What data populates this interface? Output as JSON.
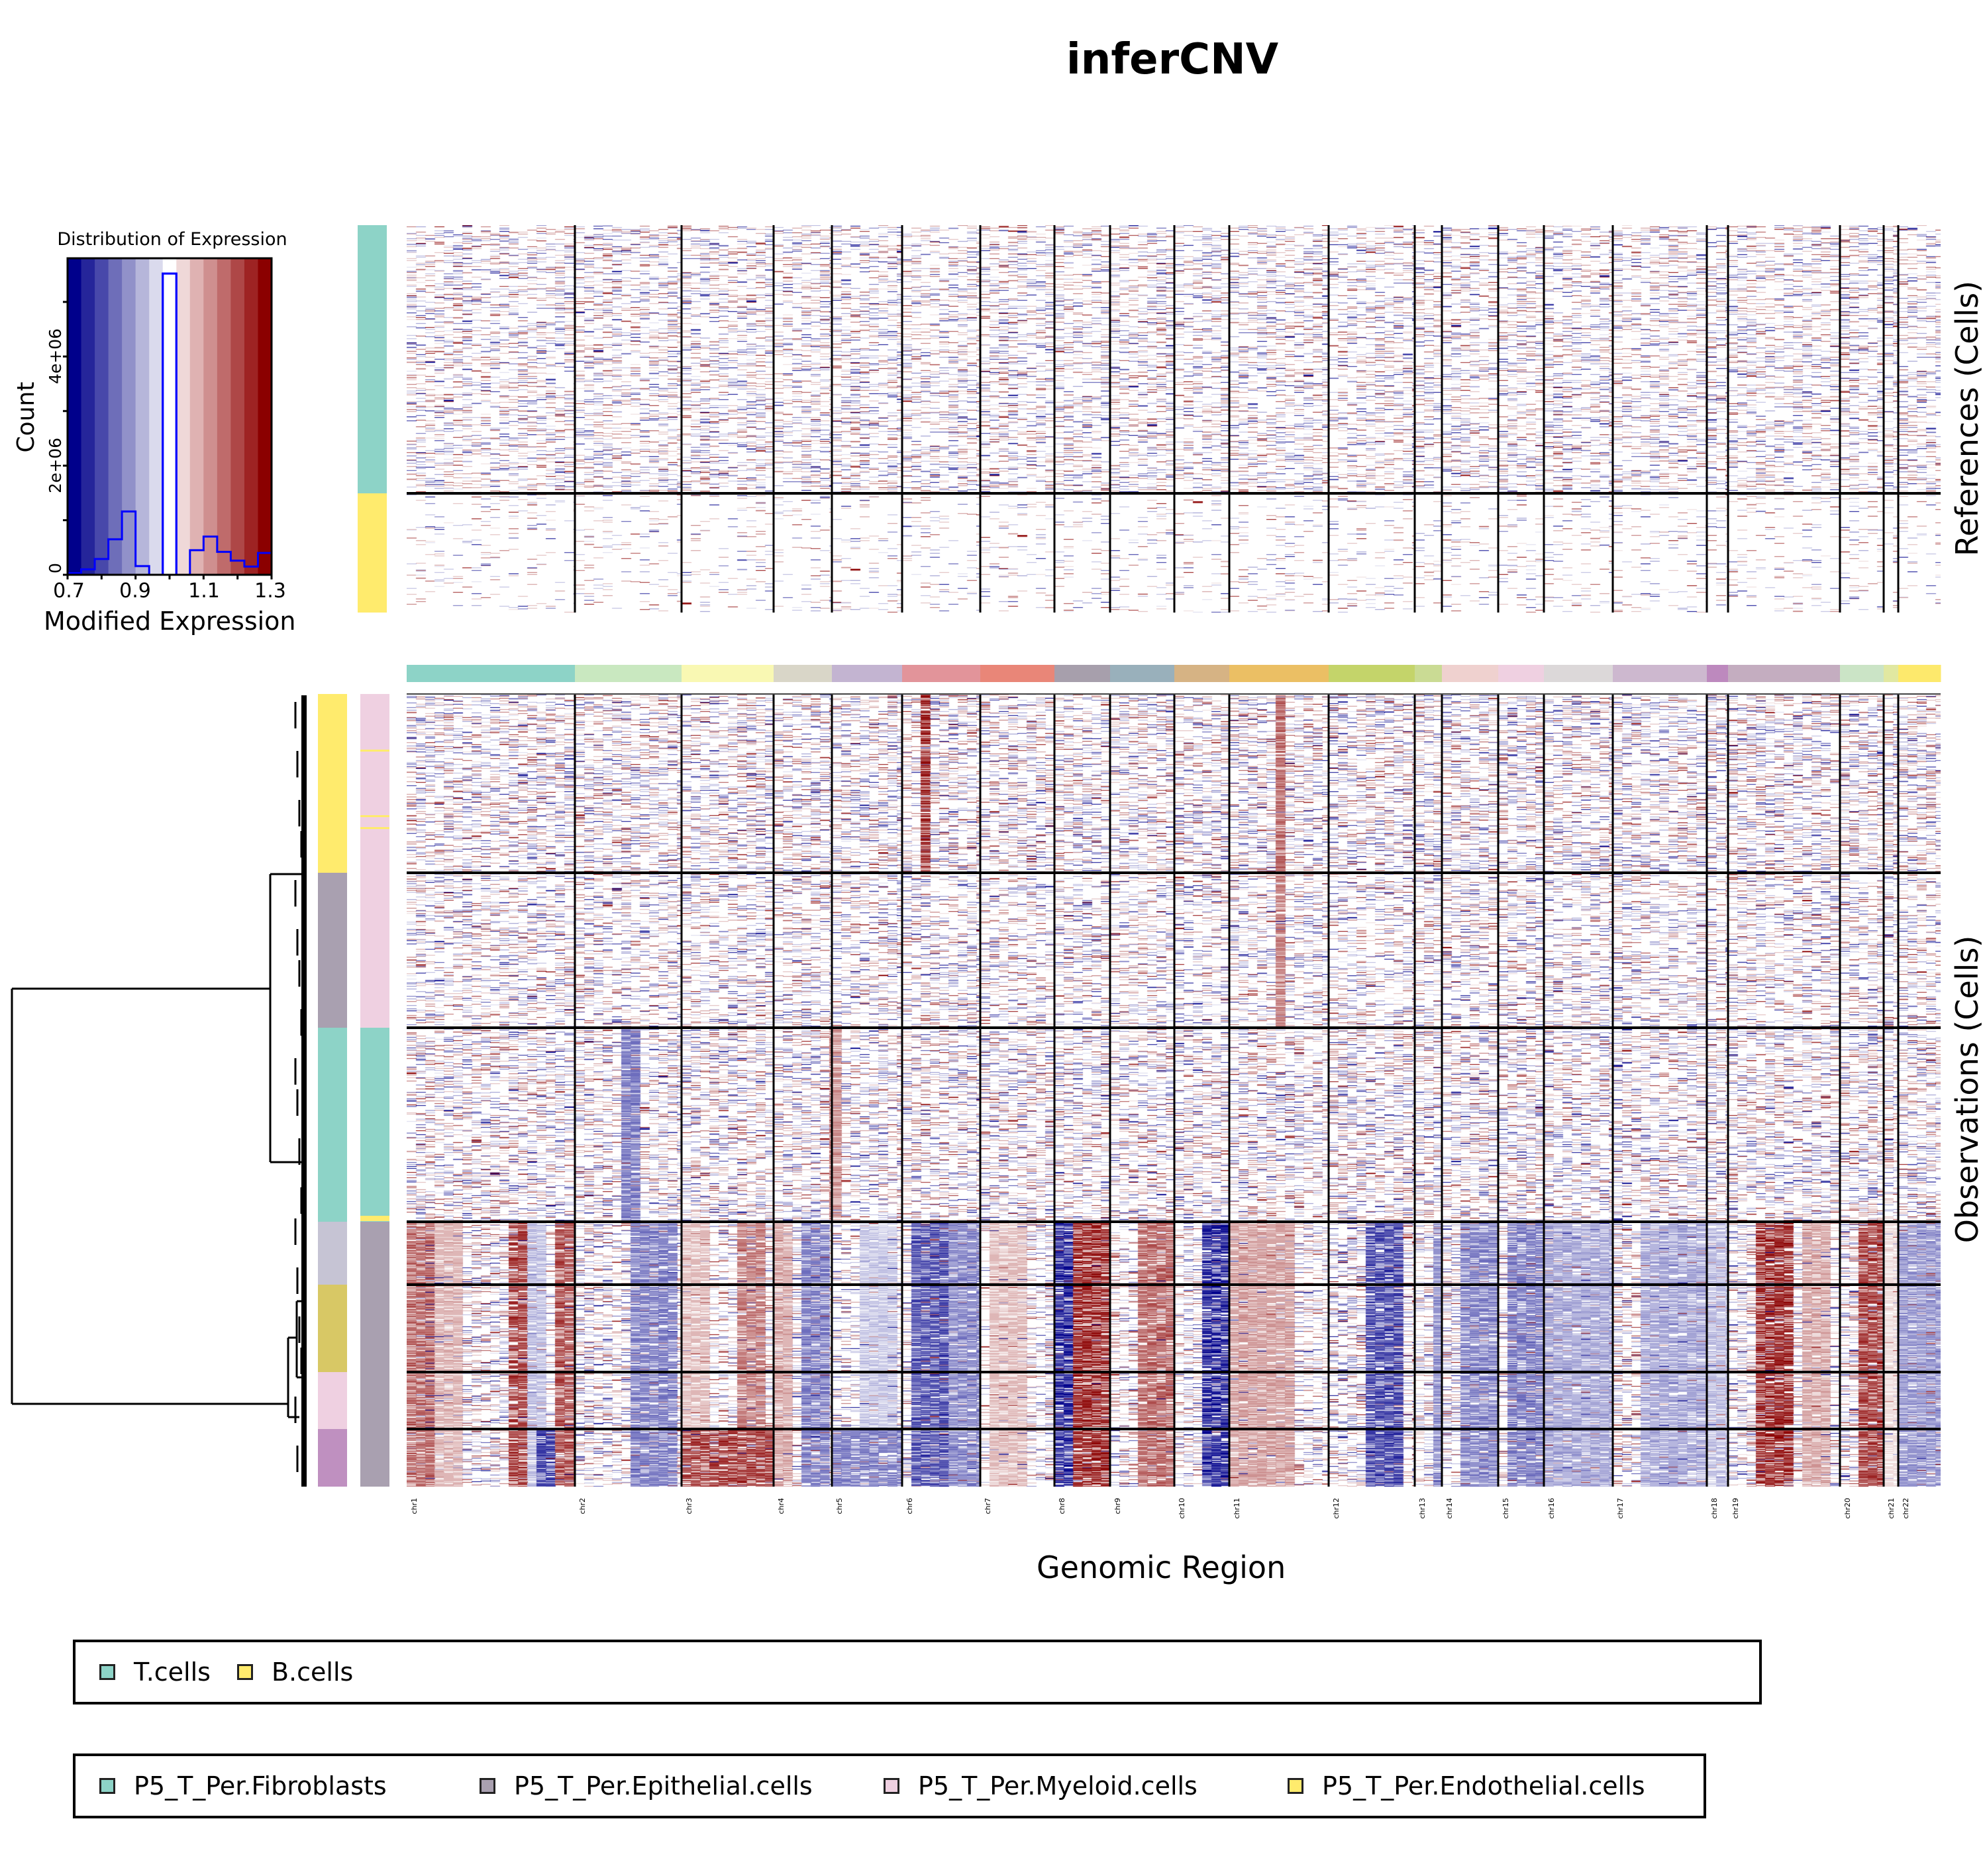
{
  "title": "inferCNV",
  "histogram": {
    "title": "Distribution of Expression",
    "xlabel": "Modified Expression",
    "ylabel": "Count",
    "xticks": [
      "0.7",
      "0.9",
      "1.1",
      "1.3"
    ],
    "yticks": [
      "0",
      "2e+06",
      "4e+06"
    ],
    "line_color": "#0000ff"
  },
  "chart_data": [
    {
      "type": "bar",
      "title": "Distribution of Expression",
      "xlabel": "Modified Expression",
      "ylabel": "Count",
      "xlim": [
        0.7,
        1.3
      ],
      "ylim": [
        0,
        5800000
      ],
      "bin_edges": [
        0.7,
        0.74,
        0.78,
        0.82,
        0.86,
        0.9,
        0.94,
        0.98,
        1.02,
        1.06,
        1.1,
        1.14,
        1.18,
        1.22,
        1.26,
        1.3
      ],
      "values": [
        30000,
        100000,
        290000,
        650000,
        1160000,
        160000,
        0,
        5520000,
        0,
        450000,
        700000,
        420000,
        260000,
        150000,
        400000
      ],
      "band_colors": [
        "#00008b",
        "#25259a",
        "#4848aa",
        "#6e6eb9",
        "#9191c9",
        "#b6b6da",
        "#dadaed",
        "#ffffff",
        "#efd8d8",
        "#dfb2b2",
        "#cf8f8f",
        "#bf6b6b",
        "#ae4747",
        "#9e2323",
        "#8b0000"
      ]
    },
    {
      "type": "heatmap",
      "title": "inferCNV",
      "xlabel": "Genomic Region",
      "colormap": {
        "low": "#00008b",
        "mid": "#ffffff",
        "high": "#8b0000",
        "range": [
          0.7,
          1.3
        ]
      },
      "chromosomes": [
        {
          "name": "chr1",
          "weight": 254,
          "color": "#8dd3c7"
        },
        {
          "name": "chr2",
          "weight": 161,
          "color": "#c9e8c0"
        },
        {
          "name": "chr3",
          "weight": 139,
          "color": "#f9f8b3"
        },
        {
          "name": "chr4",
          "weight": 88,
          "color": "#d9d6c8"
        },
        {
          "name": "chr5",
          "weight": 106,
          "color": "#c3b4d1"
        },
        {
          "name": "chr6",
          "weight": 118,
          "color": "#e2949a"
        },
        {
          "name": "chr7",
          "weight": 112,
          "color": "#e98678"
        },
        {
          "name": "chr8",
          "weight": 84,
          "color": "#a79fac"
        },
        {
          "name": "chr9",
          "weight": 97,
          "color": "#99b0bb"
        },
        {
          "name": "chr10",
          "weight": 83,
          "color": "#d6b384"
        },
        {
          "name": "chr11",
          "weight": 150,
          "color": "#ebbf64"
        },
        {
          "name": "chr12",
          "weight": 130,
          "color": "#c4d46a"
        },
        {
          "name": "chr13",
          "weight": 41,
          "color": "#cadb94"
        },
        {
          "name": "chr14",
          "weight": 85,
          "color": "#efd1cf"
        },
        {
          "name": "chr15",
          "weight": 69,
          "color": "#efd0e1"
        },
        {
          "name": "chr16",
          "weight": 104,
          "color": "#dcd8d9"
        },
        {
          "name": "chr17",
          "weight": 142,
          "color": "#cdb8cf"
        },
        {
          "name": "chr18",
          "weight": 32,
          "color": "#bd89be"
        },
        {
          "name": "chr19",
          "weight": 169,
          "color": "#c4adc0"
        },
        {
          "name": "chr20",
          "weight": 66,
          "color": "#cbe4c6"
        },
        {
          "name": "chr21",
          "weight": 22,
          "color": "#e1e8a1"
        },
        {
          "name": "chr22",
          "weight": 64,
          "color": "#fde96c"
        }
      ],
      "references": {
        "label": "References (Cells)",
        "groups": [
          {
            "name": "T.cells",
            "color": "#8dd3c7",
            "rows": 405,
            "noise": 0.55
          },
          {
            "name": "B.cells",
            "color": "#ffeb6d",
            "rows": 180,
            "noise": 0.15
          }
        ]
      },
      "observations": {
        "label": "Observations (Cells)",
        "clusters": [
          {
            "color": "#ffeb6d",
            "type_color": "#efd0e1",
            "rows": 270,
            "profile": "normal_myeloid"
          },
          {
            "color": "#a9a0b0",
            "type_color": "#efd0e1",
            "rows": 234,
            "profile": "normal_myeloid2"
          },
          {
            "color": "#8dd3c7",
            "type_color": "#8dd3c7",
            "rows": 293,
            "profile": "normal_fibro"
          },
          {
            "color": "#c6c4d4",
            "type_color": "#a9a0b0",
            "rows": 95,
            "profile": "tumor"
          },
          {
            "color": "#d8c865",
            "type_color": "#a9a0b0",
            "rows": 132,
            "profile": "tumor"
          },
          {
            "color": "#efd0e1",
            "type_color": "#a9a0b0",
            "rows": 86,
            "profile": "tumor"
          },
          {
            "color": "#bf90c0",
            "type_color": "#a9a0b0",
            "rows": 87,
            "profile": "tumor_b"
          }
        ]
      }
    }
  ],
  "axes": {
    "genomic_label": "Genomic Region"
  },
  "legends": {
    "references": [
      {
        "label": "T.cells",
        "color": "#8dd3c7"
      },
      {
        "label": "B.cells",
        "color": "#ffeb6d"
      }
    ],
    "observations": [
      {
        "label": "P5_T_Per.Fibroblasts",
        "color": "#8dd3c7"
      },
      {
        "label": "P5_T_Per.Epithelial.cells",
        "color": "#a9a0b0"
      },
      {
        "label": "P5_T_Per.Myeloid.cells",
        "color": "#efd0e1"
      },
      {
        "label": "P5_T_Per.Endothelial.cells",
        "color": "#ffeb6d"
      }
    ]
  }
}
